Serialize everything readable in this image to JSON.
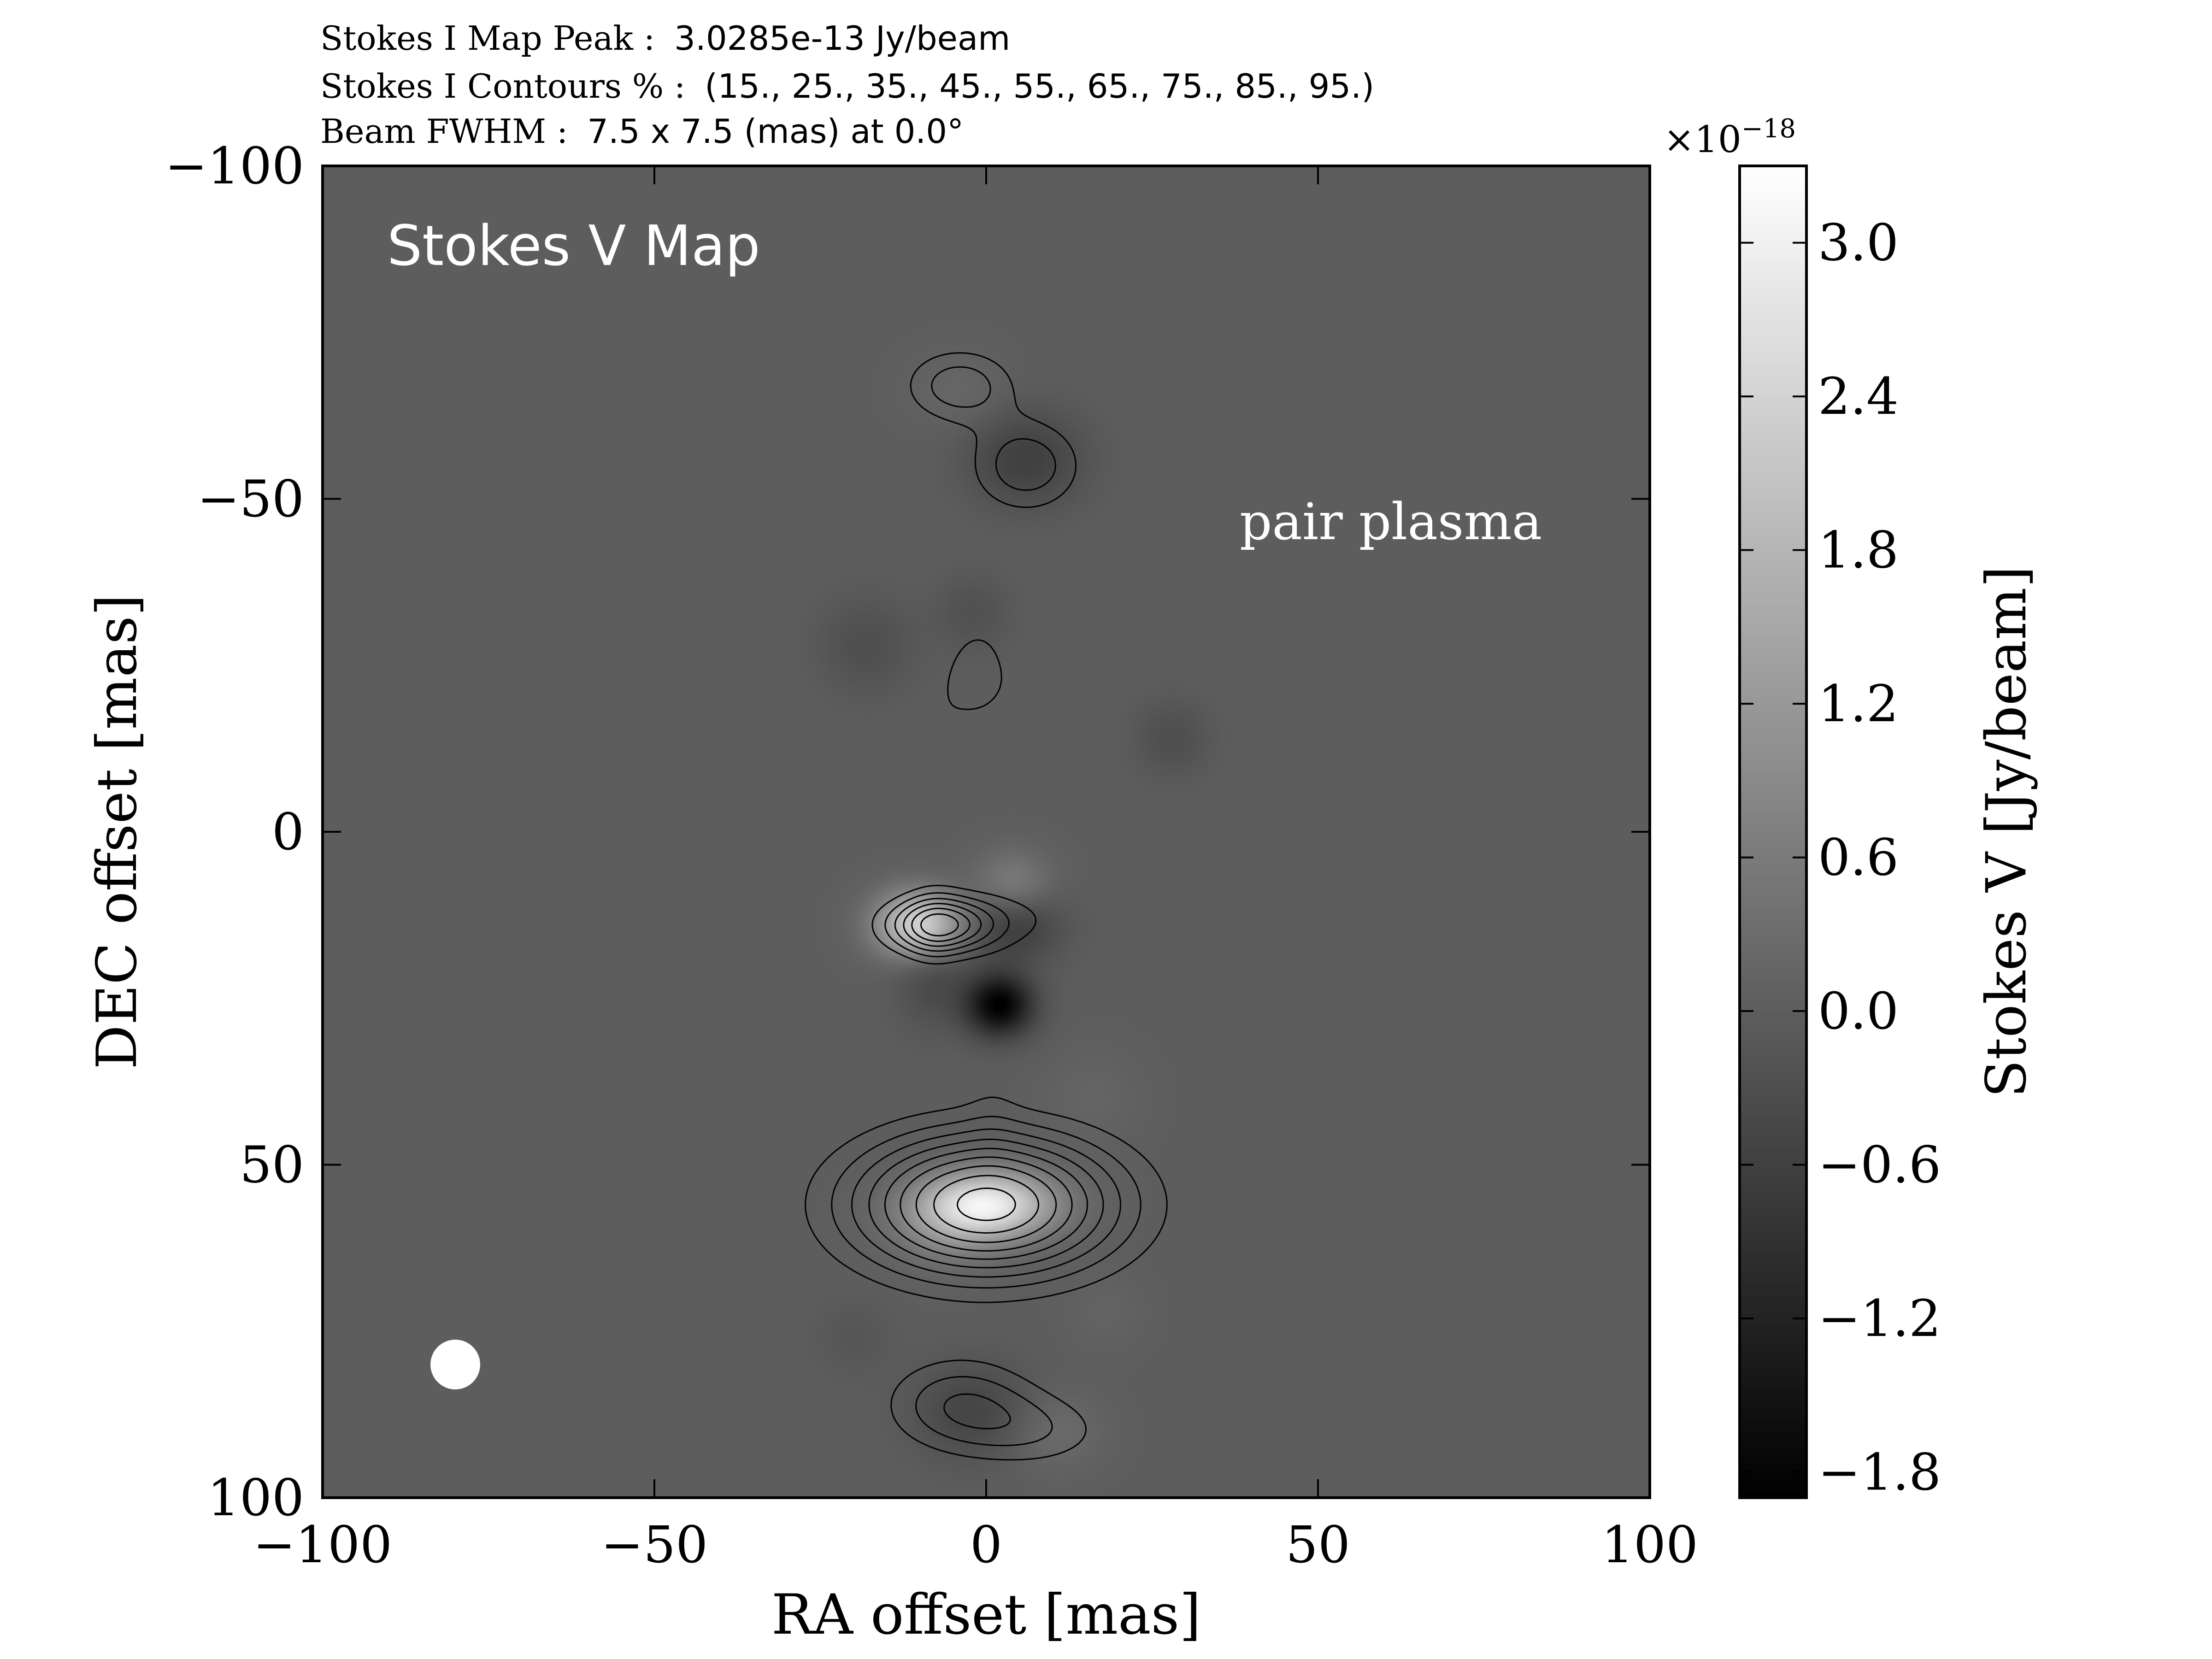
{
  "chart_data": {
    "type": "heatmap",
    "header": {
      "peak_label": "Stokes I Map Peak :",
      "peak_value": "3.0285e-13 Jy/beam",
      "contours_label": "Stokes I Contours % :",
      "contours_value": "(15., 25., 35., 45., 55., 65., 75., 85., 95.)",
      "beam_label": "Beam FWHM :",
      "beam_value": "7.5 x 7.5 (mas) at 0.0°"
    },
    "xlabel": "RA offset [mas]",
    "ylabel": "DEC offset [mas]",
    "xlim": [
      -100,
      100
    ],
    "ylim": [
      -100,
      100
    ],
    "y_inverted": true,
    "x_ticks": [
      -100,
      -50,
      0,
      50,
      100
    ],
    "y_ticks": [
      -100,
      -50,
      0,
      50,
      100
    ],
    "x_tick_labels": [
      "−100",
      "−50",
      "0",
      "50",
      "100"
    ],
    "y_tick_labels": [
      "−100",
      "−50",
      "0",
      "50",
      "100"
    ],
    "annotations": {
      "map_title": "Stokes V Map",
      "region_label": "pair plasma"
    },
    "beam": {
      "ra": -80,
      "dec": 80,
      "fwhm_mas": 7.5,
      "color": "#ffffff"
    },
    "colorbar": {
      "label": "Stokes V [Jy/beam]",
      "exponent_label": "×10",
      "exponent": "−18",
      "min": -1.9,
      "max": 3.3,
      "ticks": [
        -1.8,
        -1.2,
        -0.6,
        0.0,
        0.6,
        1.2,
        1.8,
        2.4,
        3.0
      ],
      "tick_labels": [
        "−1.8",
        "−1.2",
        "−0.6",
        "0.0",
        "0.6",
        "1.2",
        "1.8",
        "2.4",
        "3.0"
      ],
      "colormap": "gray"
    },
    "stokes_v_sources": [
      {
        "ra": -10,
        "dec": 14,
        "amp": 2.6,
        "sx": 4.5,
        "sy": 3.5
      },
      {
        "ra": 4,
        "dec": 14,
        "amp": -0.7,
        "sx": 5,
        "sy": 4
      },
      {
        "ra": 0,
        "dec": 56,
        "amp": 2.9,
        "sx": 7,
        "sy": 3.5
      },
      {
        "ra": -6,
        "dec": 60,
        "amp": 0.6,
        "sx": 6,
        "sy": 4
      },
      {
        "ra": 2,
        "dec": 26,
        "amp": -1.9,
        "sx": 3.5,
        "sy": 3.2
      },
      {
        "ra": -8,
        "dec": 20,
        "amp": -0.5,
        "sx": 4,
        "sy": 6
      },
      {
        "ra": 4,
        "dec": 8,
        "amp": 0.7,
        "sx": 4,
        "sy": 3.5
      },
      {
        "ra": 6,
        "dec": -56,
        "amp": -0.6,
        "sx": 6,
        "sy": 5
      },
      {
        "ra": -4,
        "dec": -66,
        "amp": 0.2,
        "sx": 5,
        "sy": 4
      },
      {
        "ra": -2,
        "dec": 87,
        "amp": -0.5,
        "sx": 6,
        "sy": 5
      },
      {
        "ra": 10,
        "dec": 90,
        "amp": 0.3,
        "sx": 5,
        "sy": 4
      },
      {
        "ra": -18,
        "dec": -28,
        "amp": -0.3,
        "sx": 5,
        "sy": 5
      },
      {
        "ra": -2,
        "dec": -33,
        "amp": -0.25,
        "sx": 4,
        "sy": 4
      },
      {
        "ra": 28,
        "dec": -14,
        "amp": -0.3,
        "sx": 4,
        "sy": 4
      },
      {
        "ra": 16,
        "dec": 40,
        "amp": 0.15,
        "sx": 5,
        "sy": 5
      },
      {
        "ra": -20,
        "dec": 76,
        "amp": -0.15,
        "sx": 4,
        "sy": 4
      },
      {
        "ra": 18,
        "dec": 72,
        "amp": 0.12,
        "sx": 4,
        "sy": 4
      }
    ],
    "stokes_i_sources": [
      {
        "ra": -4,
        "dec": -67,
        "amp": 0.32,
        "sx": 6,
        "sy": 4
      },
      {
        "ra": 6,
        "dec": -55,
        "amp": 0.33,
        "sx": 6,
        "sy": 5
      },
      {
        "ra": -7,
        "dec": 14,
        "amp": 0.62,
        "sx": 6,
        "sy": 3
      },
      {
        "ra": 6,
        "dec": 13,
        "amp": 0.12,
        "sx": 8,
        "sy": 4
      },
      {
        "ra": -7,
        "dec": -17,
        "amp": 0.1,
        "sx": 3,
        "sy": 8
      },
      {
        "ra": -8,
        "dec": 14,
        "amp": 0.1,
        "sx": 3,
        "sy": 5
      },
      {
        "ra": -1,
        "dec": -24,
        "amp": 0.2,
        "sx": 3.5,
        "sy": 6
      },
      {
        "ra": 7,
        "dec": -19,
        "amp": 0.1,
        "sx": 3,
        "sy": 6
      },
      {
        "ra": 1,
        "dec": 35,
        "amp": 0.06,
        "sx": 3,
        "sy": 9
      },
      {
        "ra": 0,
        "dec": 56,
        "amp": 1.0,
        "sx": 14,
        "sy": 7.5
      },
      {
        "ra": -4,
        "dec": 86,
        "amp": 0.34,
        "sx": 8,
        "sy": 5
      },
      {
        "ra": 8,
        "dec": 90,
        "amp": 0.2,
        "sx": 8,
        "sy": 4
      }
    ],
    "contour_levels_percent": [
      15,
      25,
      35,
      45,
      55,
      65,
      75,
      85,
      95
    ]
  },
  "colors": {
    "contour": "#000000",
    "axes": "#000000",
    "annotation_text": "#ffffff"
  }
}
